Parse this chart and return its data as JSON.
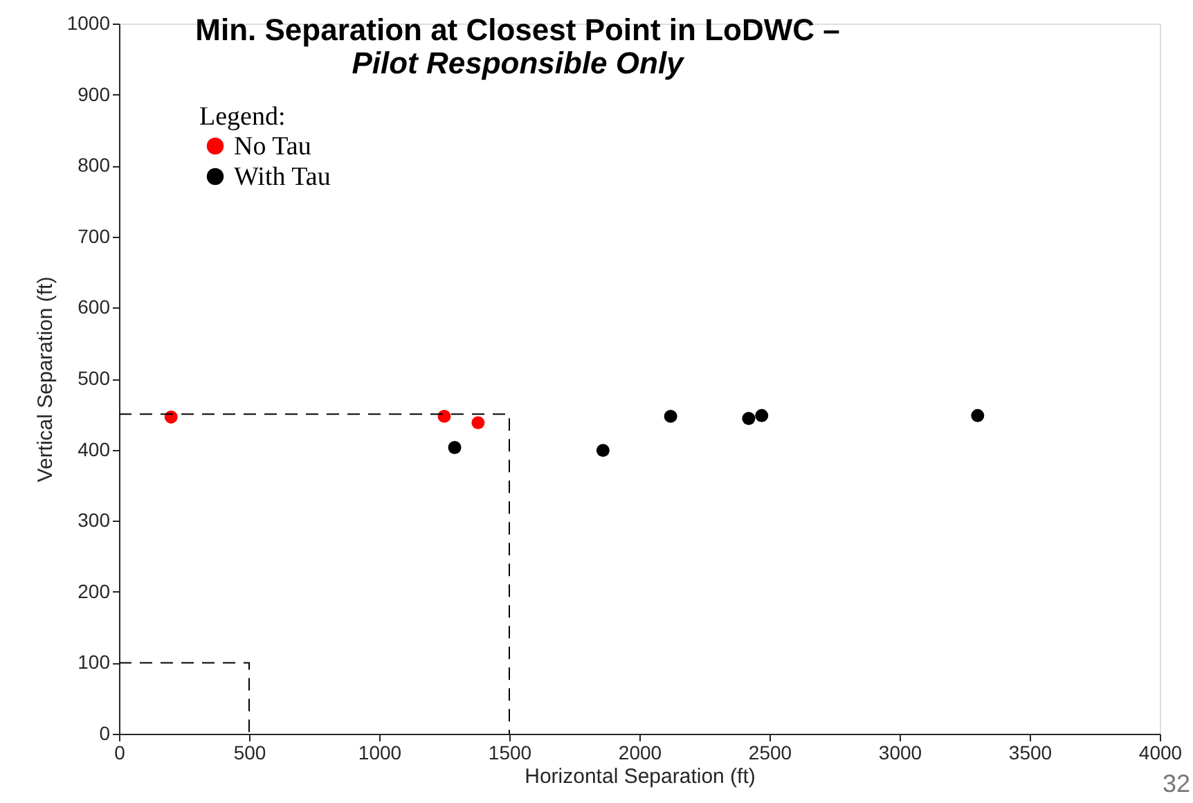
{
  "chart_data": {
    "type": "scatter",
    "title": "Min. Separation at Closest Point in LoDWC –",
    "subtitle": "Pilot Responsible Only",
    "xlabel": "Horizontal Separation (ft)",
    "ylabel": "Vertical Separation (ft)",
    "legend_title": "Legend:",
    "series": [
      {
        "name": "No Tau",
        "color": "#ff0000",
        "x": [
          200,
          1250,
          1380
        ],
        "values": [
          446,
          447,
          438
        ]
      },
      {
        "name": "With Tau",
        "color": "#000000",
        "x": [
          1290,
          1860,
          2120,
          2420,
          2470,
          3300
        ],
        "values": [
          403,
          399,
          447,
          444,
          448,
          448
        ]
      },
      {
        "type": "line",
        "line_style": "dashed",
        "marker": "none",
        "color": "#000000",
        "x": [
          0,
          1500,
          1500
        ],
        "values": [
          450,
          450,
          0
        ]
      },
      {
        "type": "line",
        "line_style": "dashed",
        "marker": "none",
        "color": "#000000",
        "x": [
          0,
          500,
          500
        ],
        "values": [
          100,
          100,
          0
        ]
      }
    ],
    "xlim": [
      0,
      4000
    ],
    "xticks": [
      0,
      500,
      1000,
      1500,
      2000,
      2500,
      3000,
      3500,
      4000
    ],
    "ylim": [
      0,
      1000
    ],
    "yticks": [
      0,
      100,
      200,
      300,
      400,
      500,
      600,
      700,
      800,
      900,
      1000
    ],
    "grid": false,
    "legend": "top left",
    "marker": "circle",
    "annotations": [
      "32"
    ]
  }
}
